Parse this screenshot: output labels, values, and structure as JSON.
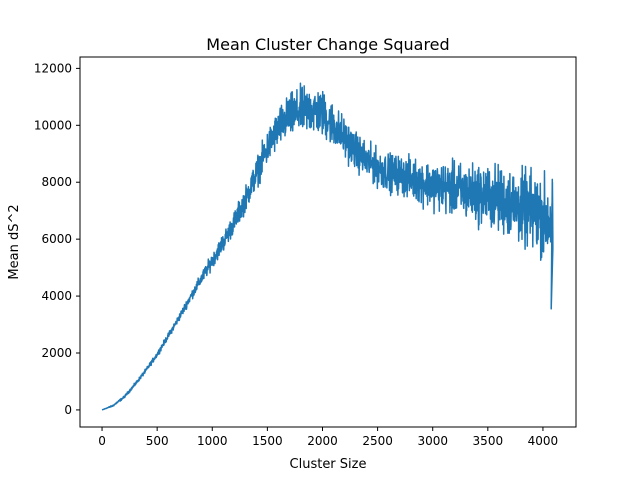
{
  "chart_data": {
    "type": "line",
    "title": "Mean Cluster Change Squared",
    "xlabel": "Cluster Size",
    "ylabel": "Mean dS^2",
    "xlim": [
      -200,
      4300
    ],
    "ylim": [
      -600,
      12400
    ],
    "xticks": [
      0,
      500,
      1000,
      1500,
      2000,
      2500,
      3000,
      3500,
      4000
    ],
    "xtick_labels": [
      "0",
      "500",
      "1000",
      "1500",
      "2000",
      "2500",
      "3000",
      "3500",
      "4000"
    ],
    "yticks": [
      0,
      2000,
      4000,
      6000,
      8000,
      10000,
      12000
    ],
    "ytick_labels": [
      "0",
      "2000",
      "4000",
      "6000",
      "8000",
      "10000",
      "12000"
    ],
    "grid": false,
    "line_color": "#1f77b4",
    "series": [
      {
        "x": [
          0,
          100,
          200,
          300,
          400,
          500,
          600,
          700,
          800,
          900,
          1000,
          1100,
          1200,
          1300,
          1400,
          1500,
          1600,
          1700,
          1800,
          1900,
          2000,
          2100,
          2200,
          2300,
          2400,
          2500,
          2600,
          2700,
          2800,
          2900,
          3000,
          3100,
          3200,
          3300,
          3400,
          3500,
          3600,
          3700,
          3800,
          3900,
          4000,
          4050,
          4090
        ],
        "y": [
          0,
          150,
          450,
          900,
          1400,
          1950,
          2600,
          3250,
          3950,
          4600,
          5250,
          5900,
          6600,
          7400,
          8300,
          9200,
          9900,
          10300,
          10500,
          10550,
          10400,
          10000,
          9550,
          9100,
          8750,
          8500,
          8350,
          8250,
          8150,
          8000,
          7900,
          7800,
          7750,
          7650,
          7600,
          7500,
          7400,
          7300,
          7100,
          6950,
          6800,
          6700,
          6500
        ],
        "noise": [
          0,
          20,
          30,
          40,
          50,
          60,
          70,
          90,
          110,
          150,
          190,
          230,
          270,
          320,
          380,
          440,
          500,
          560,
          600,
          620,
          600,
          560,
          520,
          480,
          480,
          480,
          480,
          500,
          520,
          560,
          600,
          640,
          680,
          720,
          760,
          800,
          850,
          900,
          950,
          1000,
          1050,
          1100,
          1150
        ]
      }
    ]
  }
}
